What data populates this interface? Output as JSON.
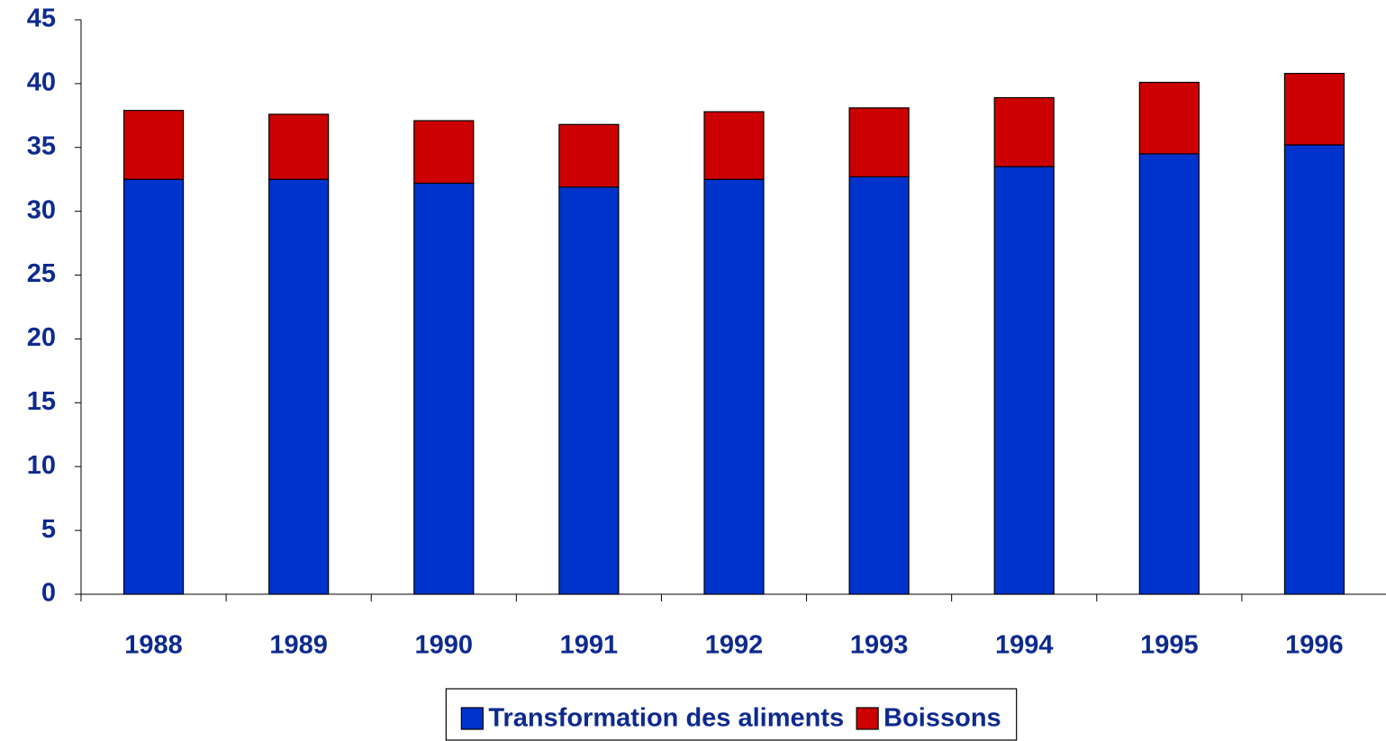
{
  "chart_data": {
    "type": "stacked_bar",
    "categories": [
      "1988",
      "1989",
      "1990",
      "1991",
      "1992",
      "1993",
      "1994",
      "1995",
      "1996"
    ],
    "series": [
      {
        "name": "Transformation des aliments",
        "color": "#0033cc",
        "values": [
          32.5,
          32.5,
          32.2,
          31.9,
          32.5,
          32.7,
          33.5,
          34.5,
          35.2
        ]
      },
      {
        "name": "Boissons",
        "color": "#cc0000",
        "values": [
          5.4,
          5.1,
          4.9,
          4.9,
          5.3,
          5.4,
          5.4,
          5.6,
          5.6
        ]
      }
    ],
    "ylim": [
      0,
      45
    ],
    "yticks": [
      0,
      5,
      10,
      15,
      20,
      25,
      30,
      35,
      40,
      45
    ],
    "legend": "bottom"
  }
}
